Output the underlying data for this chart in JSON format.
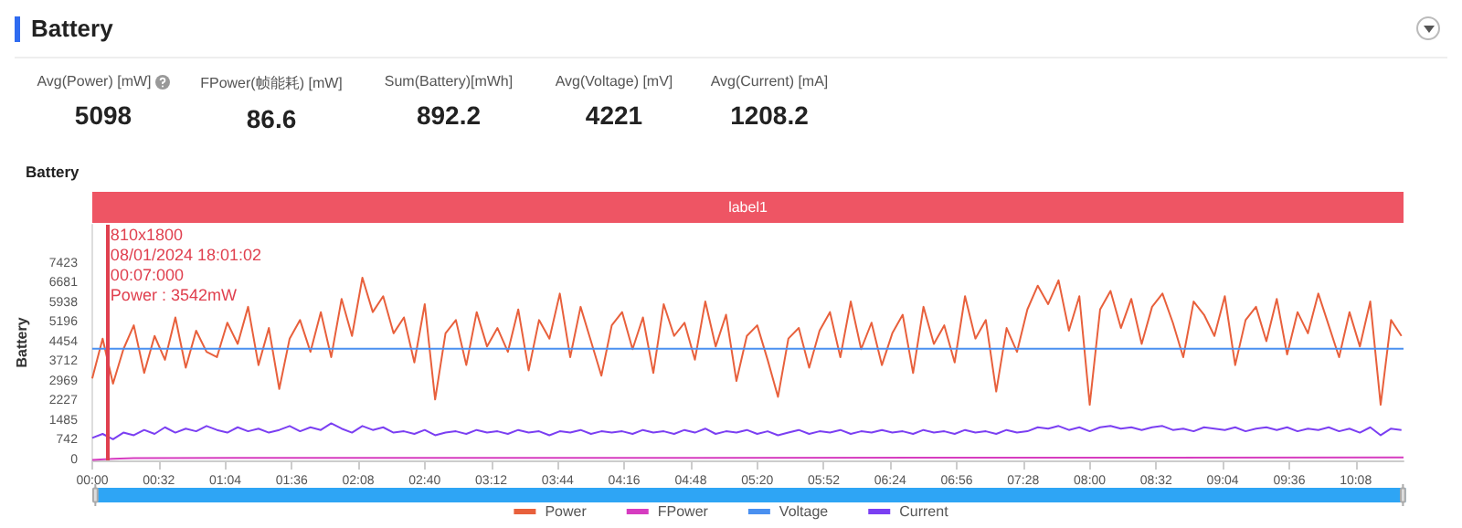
{
  "chart_data": {
    "type": "line",
    "title": "Battery",
    "subtitle": "Battery",
    "ylabel": "Battery",
    "annotations": [
      "Avg(Power) [mW]",
      "5098",
      "FPower(帧能耗) [mW]",
      "86.6",
      "Sum(Battery)[mWh]",
      "892.2",
      "Avg(Voltage) [mV]",
      "4221",
      "Avg(Current) [mA]",
      "1208.2",
      "label1"
    ],
    "x": [
      0,
      5,
      10,
      15,
      20,
      25,
      30,
      35,
      40,
      45,
      50,
      55,
      60,
      65,
      70,
      75,
      80,
      85,
      90,
      95,
      100,
      105,
      110,
      115,
      120,
      125,
      130,
      135,
      140,
      145,
      150,
      155,
      160,
      165,
      170,
      175,
      180,
      185,
      190,
      195,
      200,
      205,
      210,
      215,
      220,
      225,
      230,
      235,
      240,
      245,
      250,
      255,
      260,
      265,
      270,
      275,
      280,
      285,
      290,
      295,
      300,
      305,
      310,
      315,
      320,
      325,
      330,
      335,
      340,
      345,
      350,
      355,
      360,
      365,
      370,
      375,
      380,
      385,
      390,
      395,
      400,
      405,
      410,
      415,
      420,
      425,
      430,
      435,
      440,
      445,
      450,
      455,
      460,
      465,
      470,
      475,
      480,
      485,
      490,
      495,
      500,
      505,
      510,
      515,
      520,
      525,
      530,
      535,
      540,
      545,
      550,
      555,
      560,
      565,
      570,
      575,
      580,
      585,
      590,
      595,
      600,
      605,
      610,
      615,
      620,
      625,
      630
    ],
    "series": [
      {
        "name": "Power",
        "color": "#e8603c",
        "values": [
          3100,
          4600,
          2900,
          4200,
          5100,
          3300,
          4700,
          3800,
          5400,
          3500,
          4900,
          4100,
          3900,
          5200,
          4400,
          5800,
          3600,
          5000,
          2700,
          4600,
          5300,
          4100,
          5600,
          3900,
          6100,
          4700,
          6900,
          5600,
          6200,
          4800,
          5400,
          3700,
          5900,
          2300,
          4800,
          5300,
          3600,
          5600,
          4300,
          5000,
          4100,
          5700,
          3400,
          5300,
          4600,
          6300,
          3900,
          5800,
          4500,
          3200,
          5100,
          5600,
          4200,
          5400,
          3300,
          5900,
          4700,
          5200,
          3800,
          6000,
          4300,
          5500,
          3000,
          4700,
          5100,
          3800,
          2400,
          4600,
          5000,
          3500,
          4900,
          5600,
          3900,
          6000,
          4200,
          5200,
          3600,
          4800,
          5500,
          3300,
          5800,
          4400,
          5100,
          3700,
          6200,
          4600,
          5300,
          2600,
          5000,
          4100,
          5700,
          6600,
          5900,
          6800,
          4900,
          6200,
          2100,
          5700,
          6400,
          5000,
          6100,
          4400,
          5800,
          6300,
          5200,
          3900,
          6000,
          5500,
          4700,
          6200,
          3600,
          5300,
          5800,
          4500,
          6100,
          4000,
          5600,
          4800,
          6300,
          5100,
          3900,
          5600,
          4300,
          6000,
          2100,
          5300,
          4700
        ]
      },
      {
        "name": "FPower",
        "color": "#d63cc0",
        "x": [
          0,
          10,
          20,
          631
        ],
        "values": [
          20,
          60,
          90,
          110
        ]
      },
      {
        "name": "Voltage",
        "color": "#4a90f0",
        "x": [
          0,
          631
        ],
        "values": [
          4220,
          4220
        ]
      },
      {
        "name": "Current",
        "color": "#7b3ff2",
        "values": [
          850,
          1000,
          800,
          1050,
          950,
          1150,
          1000,
          1250,
          1050,
          1200,
          1100,
          1300,
          1150,
          1050,
          1250,
          1100,
          1200,
          1050,
          1150,
          1300,
          1100,
          1250,
          1150,
          1400,
          1200,
          1050,
          1300,
          1150,
          1250,
          1050,
          1100,
          1000,
          1150,
          950,
          1050,
          1100,
          1000,
          1150,
          1050,
          1100,
          1000,
          1150,
          1050,
          1100,
          950,
          1100,
          1050,
          1150,
          1000,
          1100,
          1050,
          1100,
          1000,
          1150,
          1050,
          1100,
          1000,
          1150,
          1050,
          1200,
          1000,
          1100,
          1050,
          1150,
          1000,
          1100,
          950,
          1050,
          1150,
          1000,
          1100,
          1050,
          1150,
          1000,
          1100,
          1050,
          1150,
          1050,
          1100,
          1000,
          1150,
          1050,
          1100,
          1000,
          1150,
          1050,
          1100,
          1000,
          1150,
          1050,
          1100,
          1250,
          1200,
          1300,
          1150,
          1250,
          1100,
          1250,
          1300,
          1200,
          1250,
          1150,
          1250,
          1300,
          1150,
          1200,
          1100,
          1250,
          1200,
          1150,
          1250,
          1100,
          1200,
          1250,
          1150,
          1250,
          1100,
          1200,
          1150,
          1250,
          1100,
          1200,
          1050,
          1250,
          950,
          1200,
          1150
        ]
      }
    ],
    "xlim": [
      0,
      631
    ],
    "xticks": [
      {
        "value": 0,
        "label": "00:00"
      },
      {
        "value": 32,
        "label": "00:32"
      },
      {
        "value": 64,
        "label": "01:04"
      },
      {
        "value": 96,
        "label": "01:36"
      },
      {
        "value": 128,
        "label": "02:08"
      },
      {
        "value": 160,
        "label": "02:40"
      },
      {
        "value": 192,
        "label": "03:12"
      },
      {
        "value": 224,
        "label": "03:44"
      },
      {
        "value": 256,
        "label": "04:16"
      },
      {
        "value": 288,
        "label": "04:48"
      },
      {
        "value": 320,
        "label": "05:20"
      },
      {
        "value": 352,
        "label": "05:52"
      },
      {
        "value": 384,
        "label": "06:24"
      },
      {
        "value": 416,
        "label": "06:56"
      },
      {
        "value": 448,
        "label": "07:28"
      },
      {
        "value": 480,
        "label": "08:00"
      },
      {
        "value": 512,
        "label": "08:32"
      },
      {
        "value": 544,
        "label": "09:04"
      },
      {
        "value": 576,
        "label": "09:36"
      },
      {
        "value": 608,
        "label": "10:08"
      }
    ],
    "ylim": [
      0,
      8900
    ],
    "yticks": [
      0,
      742,
      1485,
      2227,
      2969,
      3712,
      4454,
      5196,
      5938,
      6681,
      7423
    ],
    "ref_lines": [
      {
        "axis": "x",
        "value": 7,
        "color": "#e0404f",
        "label": "810x1800\n08/01/2024 18:01:02\n00:07:000\nPower : 3542mW"
      }
    ],
    "grid": false,
    "legend": "bottom",
    "marker": "none",
    "line_style": "solid"
  }
}
